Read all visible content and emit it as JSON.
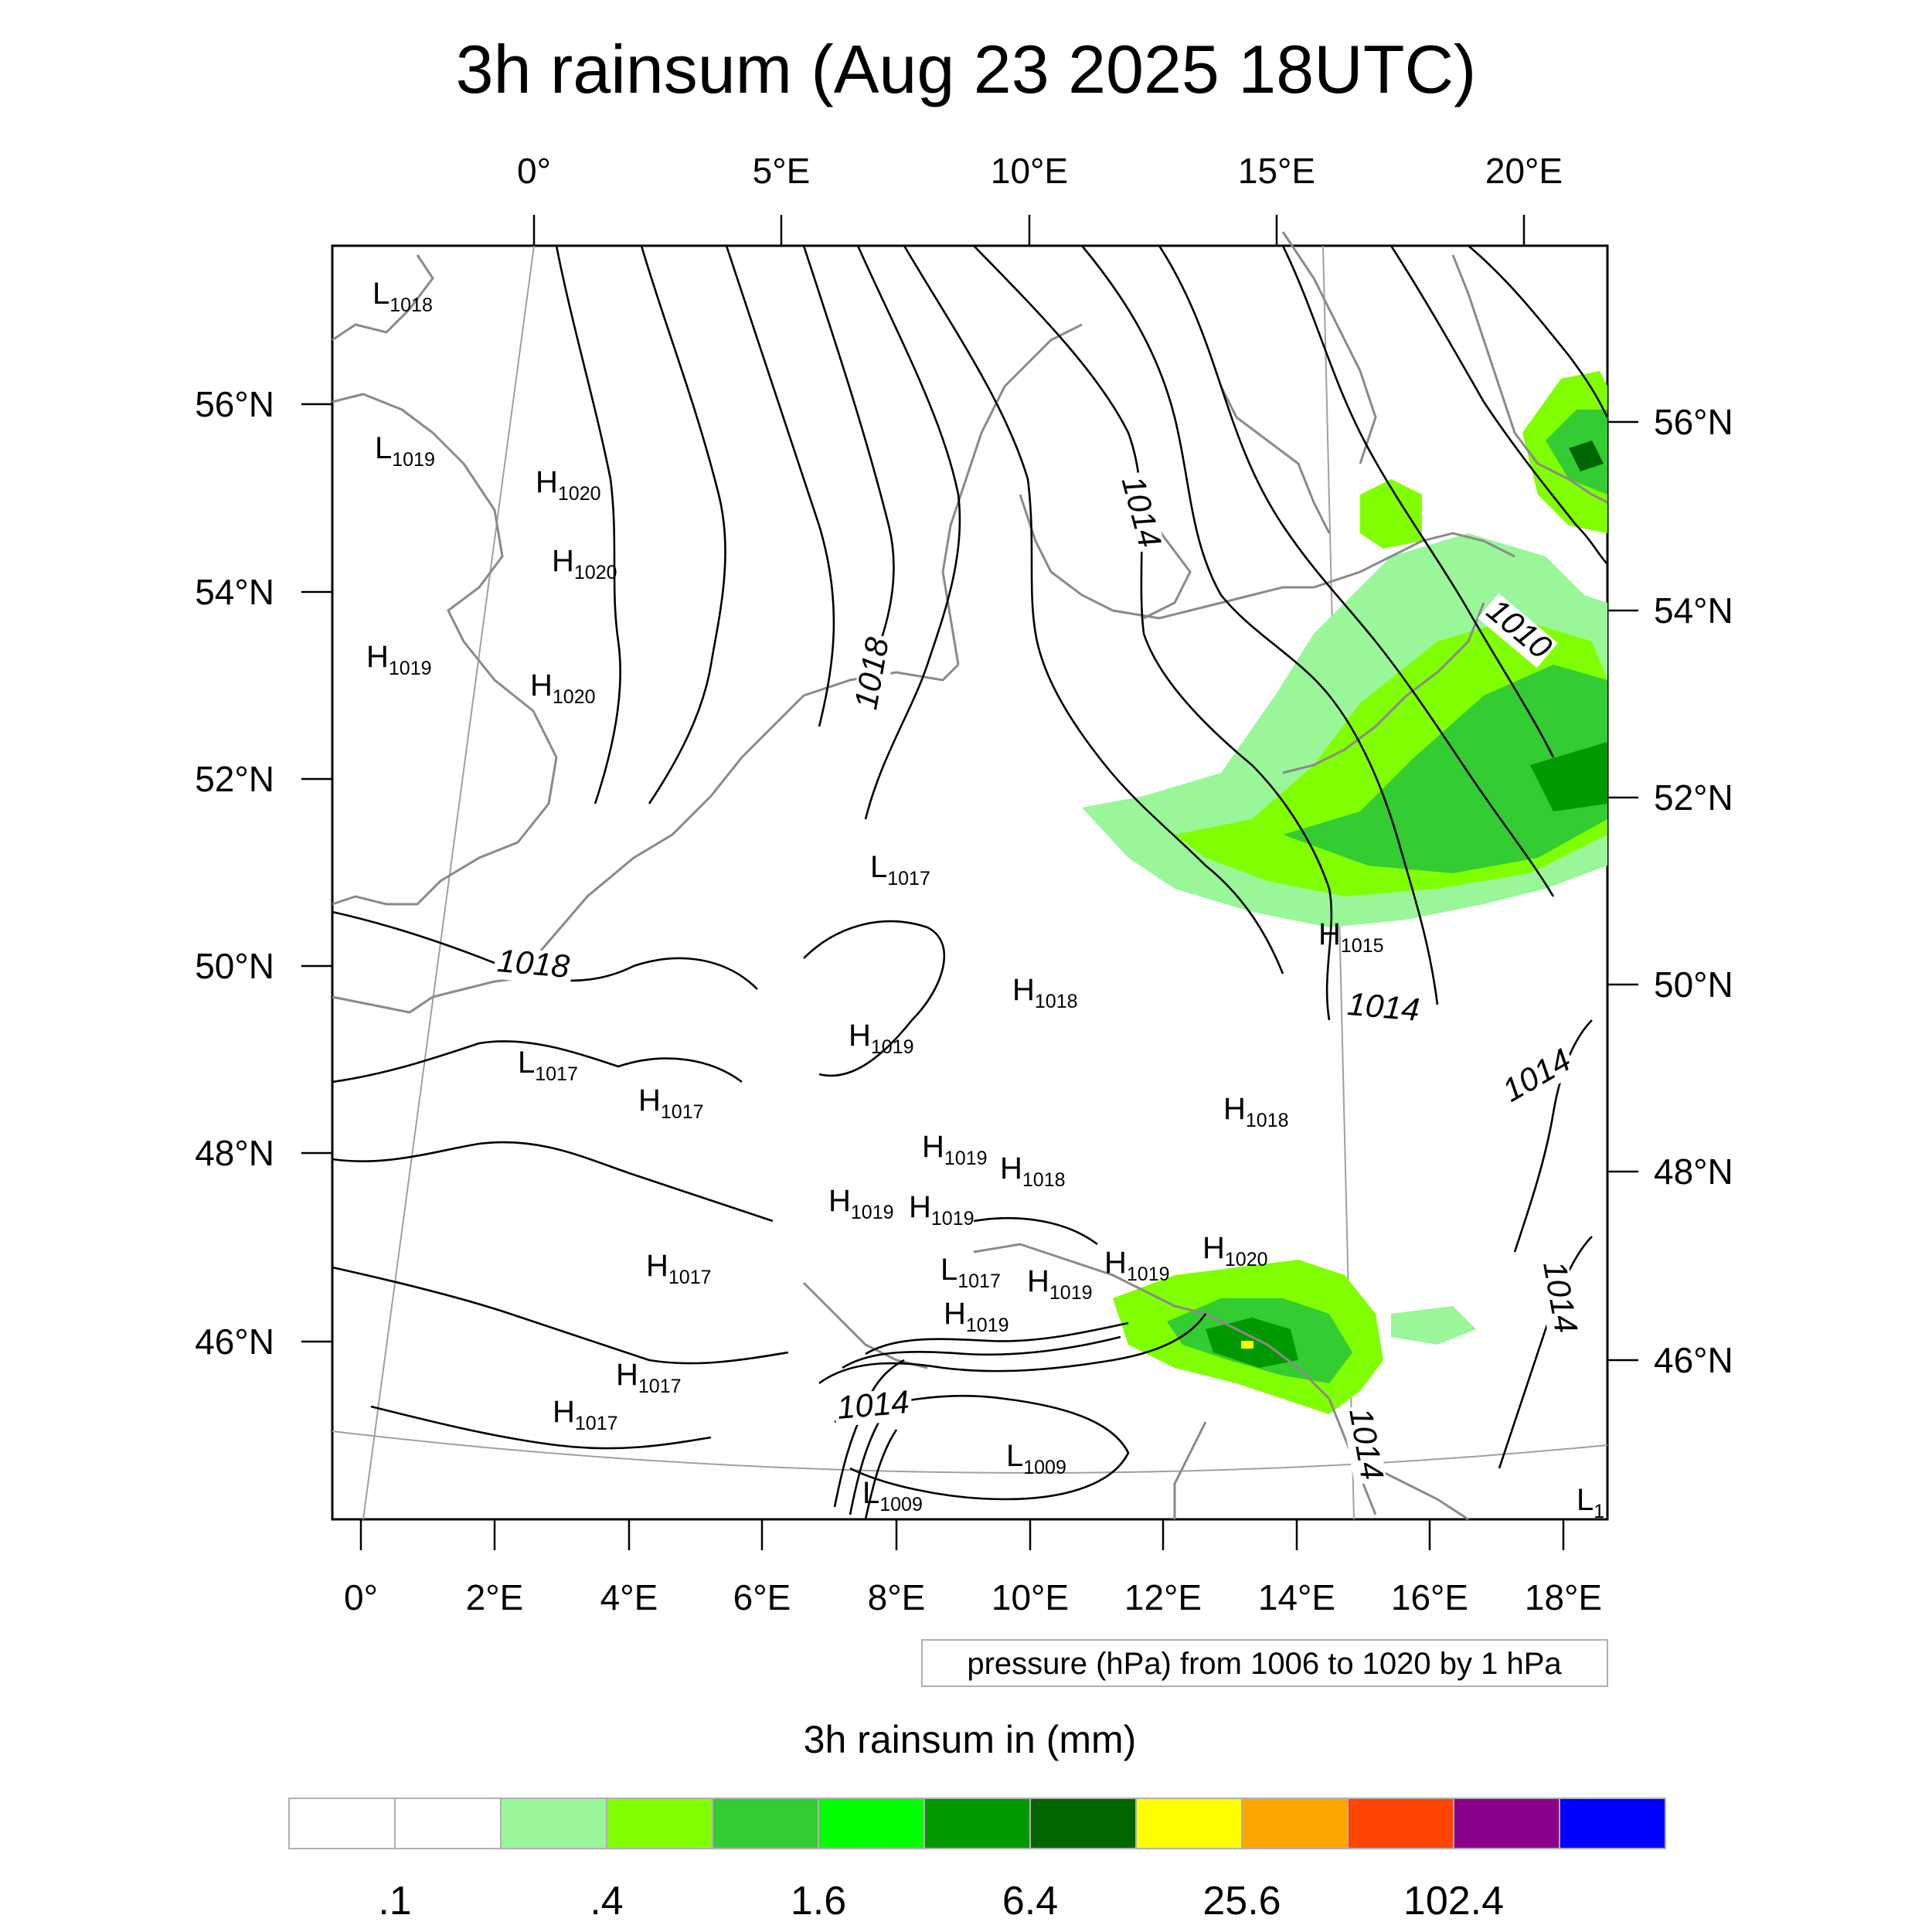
{
  "title": "3h rainsum (Aug 23 2025 18UTC)",
  "top_axis_ticks": [
    "0°",
    "5°E",
    "10°E",
    "15°E",
    "20°E"
  ],
  "bottom_axis_ticks": [
    "0°",
    "2°E",
    "4°E",
    "6°E",
    "8°E",
    "10°E",
    "12°E",
    "14°E",
    "16°E",
    "18°E"
  ],
  "left_axis_ticks": [
    "56°N",
    "54°N",
    "52°N",
    "50°N",
    "48°N",
    "46°N"
  ],
  "right_axis_ticks": [
    "56°N",
    "54°N",
    "52°N",
    "50°N",
    "48°N",
    "46°N"
  ],
  "pressure_labels": [
    {
      "letter": "L",
      "value": "1018"
    },
    {
      "letter": "L",
      "value": "1019"
    },
    {
      "letter": "H",
      "value": "1020"
    },
    {
      "letter": "H",
      "value": "1020"
    },
    {
      "letter": "H",
      "value": "1019"
    },
    {
      "letter": "H",
      "value": "1020"
    },
    {
      "letter": "L",
      "value": "1017"
    },
    {
      "letter": "H",
      "value": "1015"
    },
    {
      "letter": "H",
      "value": "1018"
    },
    {
      "letter": "H",
      "value": "1019"
    },
    {
      "letter": "L",
      "value": "1017"
    },
    {
      "letter": "H",
      "value": "1017"
    },
    {
      "letter": "H",
      "value": "1018"
    },
    {
      "letter": "H",
      "value": "1019"
    },
    {
      "letter": "H",
      "value": "1018"
    },
    {
      "letter": "H",
      "value": "1019"
    },
    {
      "letter": "H",
      "value": "1019"
    },
    {
      "letter": "H",
      "value": "1017"
    },
    {
      "letter": "L",
      "value": "1017"
    },
    {
      "letter": "H",
      "value": "1019"
    },
    {
      "letter": "H",
      "value": "1019"
    },
    {
      "letter": "H",
      "value": "1020"
    },
    {
      "letter": "H",
      "value": "1019"
    },
    {
      "letter": "H",
      "value": "1017"
    },
    {
      "letter": "H",
      "value": "1017"
    },
    {
      "letter": "L",
      "value": "1009"
    },
    {
      "letter": "L",
      "value": "1009"
    },
    {
      "letter": "L",
      "value": "1"
    }
  ],
  "contour_labels": [
    "1014",
    "1018",
    "1010",
    "1018",
    "1014",
    "1014",
    "1014",
    "1014",
    "1014"
  ],
  "contour_note": "pressure (hPa) from 1006 to 1020 by 1 hPa",
  "colorbar": {
    "title": "3h rainsum in (mm)",
    "colors": [
      "#ffffff",
      "#ffffff",
      "#99f799",
      "#80ff00",
      "#33cc33",
      "#00ff00",
      "#009900",
      "#006600",
      "#ffff00",
      "#ffa500",
      "#ff4500",
      "#8b008b",
      "#0000ff"
    ],
    "labels": [
      ".1",
      ".4",
      "1.6",
      "6.4",
      "25.6",
      "102.4"
    ]
  }
}
